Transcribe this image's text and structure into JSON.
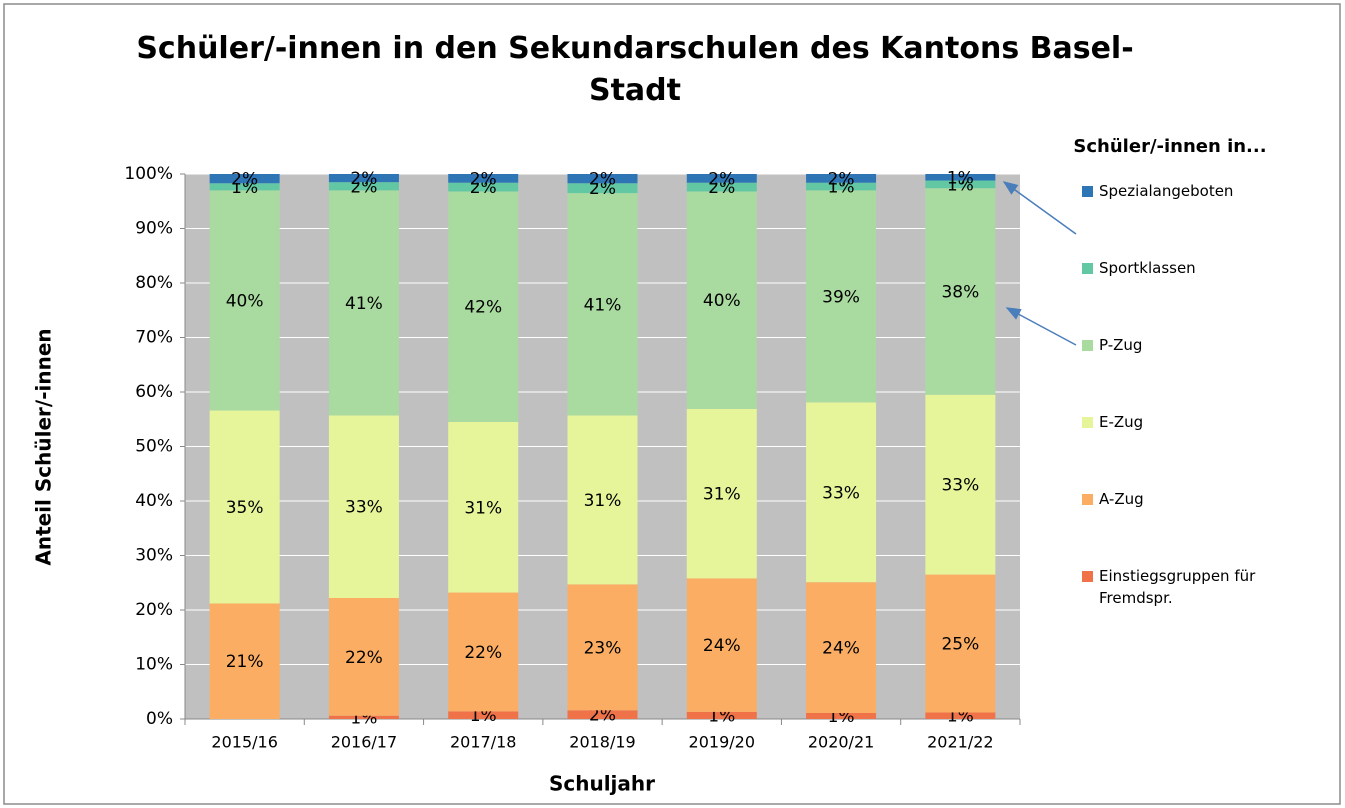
{
  "chart_data": {
    "type": "stacked_bar",
    "title": "Schüler/-innen in den Sekundarschulen des Kantons Basel-Stadt",
    "x_label": "Schuljahr",
    "y_label": "Anteil Schüler/-innen",
    "legend_title": "Schüler/-innen in...",
    "legend": "right",
    "categories": [
      "2015/16",
      "2016/17",
      "2017/18",
      "2018/19",
      "2019/20",
      "2020/21",
      "2021/22"
    ],
    "series": [
      {
        "name": "Einstiegsgruppen für Fremdspr.",
        "color": "#f07248",
        "values": [
          0,
          0.6,
          1.4,
          1.6,
          1.3,
          1.1,
          1.2
        ],
        "value_labels": [
          null,
          "1%",
          "1%",
          "2%",
          "1%",
          "1%",
          "1%"
        ]
      },
      {
        "name": "A-Zug",
        "color": "#fbae63",
        "values": [
          21.2,
          21.6,
          21.8,
          23.1,
          24.5,
          24.0,
          25.3
        ],
        "value_labels": [
          "21%",
          "22%",
          "22%",
          "23%",
          "24%",
          "24%",
          "25%"
        ]
      },
      {
        "name": "E-Zug",
        "color": "#e6f59a",
        "values": [
          35.4,
          33.5,
          31.3,
          31.0,
          31.1,
          33.0,
          33.0
        ],
        "value_labels": [
          "35%",
          "33%",
          "31%",
          "31%",
          "31%",
          "33%",
          "33%"
        ]
      },
      {
        "name": "P-Zug",
        "color": "#a9dba0",
        "values": [
          40.4,
          41.3,
          42.3,
          40.8,
          39.9,
          38.9,
          37.9
        ],
        "value_labels": [
          "40%",
          "41%",
          "42%",
          "41%",
          "40%",
          "39%",
          "38%"
        ]
      },
      {
        "name": "Sportklassen",
        "color": "#62c7a3",
        "values": [
          1.3,
          1.5,
          1.6,
          1.8,
          1.6,
          1.4,
          1.4
        ],
        "value_labels": [
          "1%",
          "2%",
          "2%",
          "2%",
          "2%",
          "1%",
          "1%"
        ]
      },
      {
        "name": "Spezialangeboten",
        "color": "#2e75b6",
        "values": [
          1.7,
          1.5,
          1.6,
          1.7,
          1.6,
          1.6,
          1.2
        ],
        "value_labels": [
          "2%",
          "2%",
          "2%",
          "2%",
          "2%",
          "2%",
          "1%"
        ]
      }
    ],
    "ylim": [
      0,
      100
    ],
    "yticks": [
      {
        "value": 0,
        "label": "0%"
      },
      {
        "value": 10,
        "label": "10%"
      },
      {
        "value": 20,
        "label": "20%"
      },
      {
        "value": 30,
        "label": "30%"
      },
      {
        "value": 40,
        "label": "40%"
      },
      {
        "value": 50,
        "label": "50%"
      },
      {
        "value": 60,
        "label": "60%"
      },
      {
        "value": 70,
        "label": "70%"
      },
      {
        "value": 80,
        "label": "80%"
      },
      {
        "value": 90,
        "label": "90%"
      },
      {
        "value": 100,
        "label": "100%"
      }
    ],
    "grid": true,
    "plot_background": "#c0c0c0"
  }
}
